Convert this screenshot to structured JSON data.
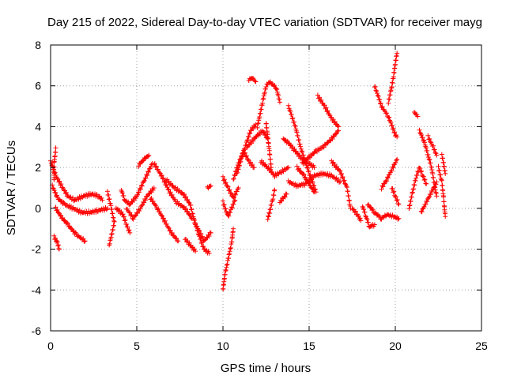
{
  "chart_data": {
    "type": "scatter",
    "title": "Day 215 of 2022, Sidereal Day-to-day VTEC variation (SDTVAR) for receiver mayg",
    "xlabel": "GPS time / hours",
    "ylabel": "SDTVAR / TECUs",
    "xlim": [
      0,
      25
    ],
    "ylim": [
      -6,
      8
    ],
    "xticks": [
      0,
      5,
      10,
      15,
      20,
      25
    ],
    "xtick_labels": [
      "0",
      "5",
      "10",
      "15",
      "20",
      "25"
    ],
    "yticks": [
      -6,
      -4,
      -2,
      0,
      2,
      4,
      6,
      8
    ],
    "ytick_labels": [
      "-6",
      "-4",
      "-2",
      "0",
      "2",
      "4",
      "6",
      "8"
    ],
    "grid": true,
    "marker": "plus",
    "color": "#ff0000",
    "series": [
      {
        "name": "SDTVAR",
        "tracks": [
          [
            [
              0.0,
              2.3
            ],
            [
              0.3,
              1.6
            ],
            [
              0.7,
              1.0
            ],
            [
              1.0,
              0.6
            ],
            [
              1.4,
              0.4
            ],
            [
              1.9,
              0.6
            ],
            [
              2.4,
              0.7
            ],
            [
              2.8,
              0.6
            ],
            [
              3.0,
              0.4
            ]
          ],
          [
            [
              0.1,
              1.1
            ],
            [
              0.4,
              0.5
            ],
            [
              0.8,
              0.2
            ],
            [
              1.3,
              0.0
            ],
            [
              1.8,
              -0.2
            ],
            [
              2.3,
              -0.2
            ],
            [
              2.8,
              -0.1
            ],
            [
              3.3,
              0.0
            ]
          ],
          [
            [
              0.3,
              0.0
            ],
            [
              0.6,
              -0.4
            ],
            [
              1.0,
              -0.8
            ],
            [
              1.5,
              -1.3
            ],
            [
              2.0,
              -1.6
            ]
          ],
          [
            [
              0.3,
              2.9
            ],
            [
              0.2,
              2.2
            ],
            [
              0.2,
              1.4
            ]
          ],
          [
            [
              0.2,
              -1.4
            ],
            [
              0.4,
              -1.7
            ],
            [
              0.5,
              -2.0
            ]
          ],
          [
            [
              3.3,
              0.8
            ],
            [
              3.5,
              0.1
            ],
            [
              3.7,
              -0.7
            ],
            [
              3.4,
              -1.8
            ]
          ],
          [
            [
              3.8,
              0.0
            ],
            [
              4.2,
              -0.3
            ],
            [
              4.4,
              -0.8
            ],
            [
              4.6,
              -1.2
            ]
          ],
          [
            [
              4.1,
              0.9
            ],
            [
              4.3,
              0.4
            ],
            [
              4.6,
              0.2
            ],
            [
              5.0,
              0.6
            ],
            [
              5.4,
              1.3
            ],
            [
              5.9,
              2.2
            ]
          ],
          [
            [
              4.4,
              0.0
            ],
            [
              4.8,
              -0.5
            ],
            [
              5.2,
              0.0
            ],
            [
              5.6,
              0.6
            ],
            [
              6.0,
              1.0
            ]
          ],
          [
            [
              5.1,
              2.1
            ],
            [
              5.4,
              2.4
            ],
            [
              5.7,
              2.6
            ]
          ],
          [
            [
              5.8,
              0.5
            ],
            [
              6.2,
              0.0
            ],
            [
              6.6,
              -0.6
            ],
            [
              7.0,
              -1.2
            ],
            [
              7.4,
              -1.6
            ]
          ],
          [
            [
              6.0,
              2.2
            ],
            [
              6.5,
              1.5
            ],
            [
              6.9,
              0.8
            ],
            [
              7.3,
              0.3
            ],
            [
              7.8,
              0.0
            ],
            [
              8.2,
              -0.5
            ]
          ],
          [
            [
              6.7,
              1.4
            ],
            [
              7.2,
              1.0
            ],
            [
              7.7,
              0.7
            ],
            [
              8.1,
              0.2
            ],
            [
              8.4,
              -0.8
            ]
          ],
          [
            [
              7.8,
              -1.5
            ],
            [
              8.2,
              -1.9
            ],
            [
              8.4,
              -2.1
            ]
          ],
          [
            [
              8.3,
              -0.5
            ],
            [
              8.6,
              -1.3
            ],
            [
              8.9,
              -2.0
            ],
            [
              9.2,
              -2.2
            ]
          ],
          [
            [
              8.5,
              -0.9
            ],
            [
              8.9,
              -1.6
            ],
            [
              9.3,
              -1.2
            ]
          ],
          [
            [
              9.1,
              1.0
            ],
            [
              9.3,
              1.1
            ]
          ],
          [
            [
              10.0,
              -4.0
            ],
            [
              10.1,
              -3.3
            ],
            [
              10.3,
              -2.5
            ],
            [
              10.5,
              -1.7
            ],
            [
              10.6,
              -1.0
            ]
          ],
          [
            [
              10.0,
              0.3
            ],
            [
              10.3,
              -0.4
            ],
            [
              10.5,
              0.0
            ],
            [
              10.7,
              0.4
            ]
          ],
          [
            [
              10.0,
              1.5
            ],
            [
              10.3,
              1.0
            ],
            [
              10.6,
              0.5
            ],
            [
              10.9,
              1.0
            ]
          ],
          [
            [
              10.6,
              1.4
            ],
            [
              10.9,
              2.2
            ],
            [
              11.2,
              2.8
            ],
            [
              11.5,
              2.3
            ],
            [
              11.8,
              2.0
            ]
          ],
          [
            [
              10.8,
              1.7
            ],
            [
              11.1,
              2.5
            ],
            [
              11.4,
              3.3
            ],
            [
              11.6,
              3.8
            ],
            [
              11.9,
              4.1
            ]
          ],
          [
            [
              11.4,
              3.0
            ],
            [
              11.9,
              3.5
            ],
            [
              12.3,
              3.8
            ],
            [
              12.6,
              3.4
            ]
          ],
          [
            [
              11.5,
              6.3
            ],
            [
              11.7,
              6.4
            ],
            [
              11.9,
              6.2
            ]
          ],
          [
            [
              12.0,
              4.0
            ],
            [
              12.3,
              5.2
            ],
            [
              12.5,
              6.0
            ],
            [
              12.7,
              6.2
            ],
            [
              13.1,
              5.9
            ],
            [
              13.3,
              5.2
            ]
          ],
          [
            [
              12.5,
              4.2
            ],
            [
              12.6,
              3.5
            ],
            [
              12.8,
              2.0
            ]
          ],
          [
            [
              12.2,
              2.3
            ],
            [
              12.6,
              2.0
            ],
            [
              13.0,
              1.6
            ],
            [
              13.4,
              1.8
            ],
            [
              13.8,
              2.0
            ]
          ],
          [
            [
              12.6,
              -0.5
            ],
            [
              12.7,
              -0.2
            ],
            [
              12.9,
              0.5
            ],
            [
              13.0,
              0.9
            ]
          ],
          [
            [
              13.3,
              0.3
            ],
            [
              13.5,
              0.5
            ],
            [
              13.7,
              0.7
            ]
          ],
          [
            [
              13.5,
              3.4
            ],
            [
              13.8,
              3.2
            ],
            [
              14.2,
              2.8
            ],
            [
              14.6,
              2.4
            ],
            [
              15.0,
              2.2
            ],
            [
              15.3,
              2.0
            ]
          ],
          [
            [
              13.8,
              5.0
            ],
            [
              14.2,
              4.0
            ],
            [
              14.5,
              3.0
            ],
            [
              14.8,
              2.2
            ],
            [
              15.1,
              1.5
            ],
            [
              15.4,
              0.8
            ]
          ],
          [
            [
              13.8,
              1.3
            ],
            [
              14.3,
              1.1
            ],
            [
              14.8,
              1.2
            ],
            [
              15.3,
              1.6
            ],
            [
              15.8,
              1.7
            ],
            [
              16.3,
              1.6
            ],
            [
              16.8,
              1.3
            ]
          ],
          [
            [
              14.3,
              2.0
            ],
            [
              14.7,
              1.6
            ],
            [
              15.0,
              1.2
            ],
            [
              15.3,
              0.8
            ]
          ],
          [
            [
              14.6,
              2.2
            ],
            [
              15.0,
              2.5
            ],
            [
              15.4,
              2.8
            ],
            [
              15.8,
              3.0
            ],
            [
              16.3,
              3.4
            ],
            [
              16.7,
              3.8
            ]
          ],
          [
            [
              15.5,
              5.5
            ],
            [
              15.9,
              5.0
            ],
            [
              16.3,
              4.4
            ],
            [
              16.7,
              4.0
            ]
          ],
          [
            [
              16.3,
              2.3
            ],
            [
              16.8,
              1.8
            ],
            [
              17.2,
              1.0
            ],
            [
              17.4,
              0.0
            ]
          ],
          [
            [
              17.5,
              0.0
            ],
            [
              17.8,
              -0.3
            ],
            [
              18.0,
              -0.6
            ]
          ],
          [
            [
              18.1,
              0.1
            ],
            [
              18.3,
              -0.4
            ],
            [
              18.5,
              -0.9
            ],
            [
              18.8,
              -0.8
            ]
          ],
          [
            [
              18.4,
              0.2
            ],
            [
              18.8,
              -0.2
            ],
            [
              19.2,
              -0.5
            ],
            [
              19.5,
              -0.3
            ],
            [
              19.9,
              -0.4
            ],
            [
              20.2,
              -0.5
            ]
          ],
          [
            [
              18.8,
              6.0
            ],
            [
              19.2,
              5.0
            ],
            [
              19.6,
              4.5
            ],
            [
              20.0,
              3.6
            ],
            [
              20.1,
              3.5
            ]
          ],
          [
            [
              19.2,
              1.0
            ],
            [
              19.5,
              1.4
            ],
            [
              19.8,
              1.9
            ],
            [
              20.1,
              2.4
            ]
          ],
          [
            [
              19.6,
              5.2
            ],
            [
              19.8,
              6.0
            ],
            [
              19.9,
              6.5
            ],
            [
              20.0,
              7.1
            ],
            [
              20.1,
              7.6
            ]
          ],
          [
            [
              19.8,
              1.0
            ],
            [
              20.0,
              0.6
            ],
            [
              20.2,
              0.2
            ]
          ],
          [
            [
              20.8,
              0.0
            ],
            [
              21.0,
              0.8
            ],
            [
              21.2,
              1.5
            ],
            [
              21.4,
              2.0
            ],
            [
              21.6,
              1.6
            ],
            [
              21.8,
              1.2
            ]
          ],
          [
            [
              21.1,
              4.7
            ],
            [
              21.3,
              4.5
            ]
          ],
          [
            [
              21.4,
              3.8
            ],
            [
              21.7,
              3.2
            ],
            [
              21.9,
              2.6
            ],
            [
              22.1,
              2.0
            ],
            [
              22.3,
              1.0
            ],
            [
              22.4,
              0.6
            ]
          ],
          [
            [
              21.5,
              -0.2
            ],
            [
              21.8,
              0.3
            ],
            [
              22.1,
              0.8
            ],
            [
              22.4,
              1.3
            ]
          ],
          [
            [
              21.9,
              3.5
            ],
            [
              22.2,
              3.0
            ],
            [
              22.4,
              2.6
            ]
          ],
          [
            [
              22.5,
              2.0
            ],
            [
              22.7,
              1.3
            ],
            [
              22.8,
              0.5
            ],
            [
              22.9,
              -0.4
            ]
          ],
          [
            [
              22.7,
              2.6
            ],
            [
              22.8,
              2.2
            ],
            [
              22.9,
              1.7
            ]
          ]
        ]
      }
    ]
  }
}
